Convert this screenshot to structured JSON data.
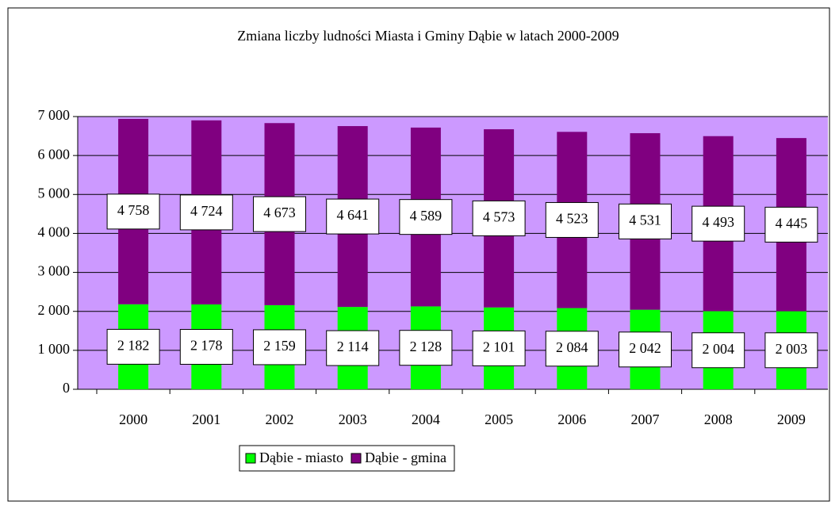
{
  "chart_data": {
    "type": "stacked_bar",
    "title": "Zmiana liczby ludności Miasta i Gminy Dąbie w latach 2000-2009",
    "categories": [
      "2000",
      "2001",
      "2002",
      "2003",
      "2004",
      "2005",
      "2006",
      "2007",
      "2008",
      "2009"
    ],
    "series": [
      {
        "name": "Dąbie - miasto",
        "color": "#00ff00",
        "values": [
          2182,
          2178,
          2159,
          2114,
          2128,
          2101,
          2084,
          2042,
          2004,
          2003
        ],
        "value_labels": [
          "2 182",
          "2 178",
          "2 159",
          "2 114",
          "2 128",
          "2 101",
          "2 084",
          "2 042",
          "2 004",
          "2 003"
        ]
      },
      {
        "name": "Dąbie - gmina",
        "color": "#800080",
        "values": [
          4758,
          4724,
          4673,
          4641,
          4589,
          4573,
          4523,
          4531,
          4493,
          4445
        ],
        "value_labels": [
          "4 758",
          "4 724",
          "4 673",
          "4 641",
          "4 589",
          "4 573",
          "4 523",
          "4 531",
          "4 493",
          "4 445"
        ]
      }
    ],
    "ylim": [
      0,
      7000
    ],
    "yticks": [
      {
        "value": 0,
        "label": "0"
      },
      {
        "value": 1000,
        "label": "1 000"
      },
      {
        "value": 2000,
        "label": "2 000"
      },
      {
        "value": 3000,
        "label": "3 000"
      },
      {
        "value": 4000,
        "label": "4 000"
      },
      {
        "value": 5000,
        "label": "5 000"
      },
      {
        "value": 6000,
        "label": "6 000"
      },
      {
        "value": 7000,
        "label": "7 000"
      }
    ],
    "grid": true,
    "plot_background": "#cc99ff",
    "legend": "bottom"
  }
}
